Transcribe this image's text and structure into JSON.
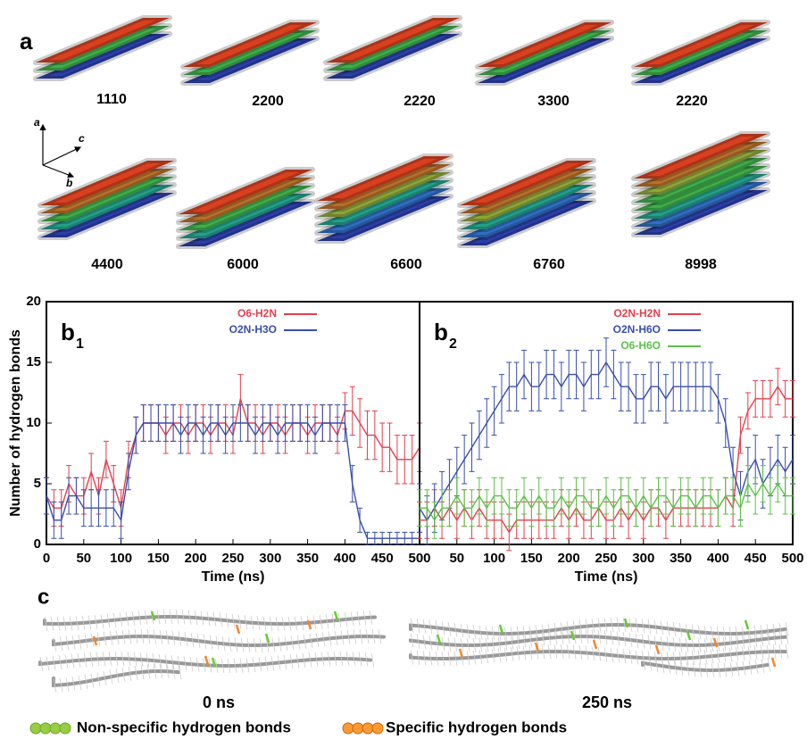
{
  "panel_a": {
    "label": "a",
    "structures": [
      "1110",
      "2200",
      "2220",
      "3300",
      "2220",
      "4400",
      "6000",
      "6600",
      "6760",
      "8998"
    ],
    "axes": [
      "a",
      "c",
      "b"
    ]
  },
  "chart_data": [
    {
      "type": "line",
      "panel_label": "b",
      "panel_sub": "1",
      "x_label": "Time (ns)",
      "y_label": "Number of hydrogen bonds",
      "legend": "upper center",
      "x": [
        0,
        10,
        20,
        30,
        40,
        50,
        60,
        70,
        80,
        90,
        100,
        110,
        120,
        130,
        140,
        150,
        160,
        170,
        180,
        190,
        200,
        210,
        220,
        230,
        240,
        250,
        260,
        270,
        280,
        290,
        300,
        310,
        320,
        330,
        340,
        350,
        360,
        370,
        380,
        390,
        400,
        410,
        420,
        430,
        440,
        450,
        460,
        470,
        480,
        490,
        500
      ],
      "xlim": [
        0,
        500
      ],
      "xticks": [
        0,
        50,
        100,
        150,
        200,
        250,
        300,
        350,
        400,
        450,
        500
      ],
      "ylim": [
        0,
        20
      ],
      "yticks": [
        0,
        5,
        10,
        15,
        20
      ],
      "series": [
        {
          "name": "O6-H2N",
          "color": "#e0404f",
          "values": [
            4,
            3,
            3,
            5,
            4,
            4,
            6,
            4,
            7,
            5,
            3,
            7,
            9,
            10,
            10,
            10,
            9,
            10,
            10,
            9,
            10,
            10,
            9,
            10,
            10,
            9,
            12,
            10,
            10,
            9,
            10,
            10,
            9,
            10,
            10,
            9,
            10,
            10,
            10,
            9,
            11,
            11,
            10,
            9,
            9,
            8,
            8,
            7,
            7,
            7,
            8
          ],
          "errors": [
            1.5,
            1.5,
            1.5,
            1.5,
            1.5,
            1.5,
            1.5,
            1.5,
            1.5,
            1.5,
            1.5,
            1.5,
            1.5,
            1.5,
            1.5,
            1.5,
            1.5,
            1.5,
            1.5,
            1.5,
            1.5,
            1.5,
            1.5,
            1.5,
            1.5,
            1.5,
            2,
            1.5,
            1.5,
            1.5,
            1.5,
            1.5,
            1.5,
            1.5,
            1.5,
            1.5,
            1.5,
            1.5,
            1.5,
            1.5,
            1.5,
            2,
            2,
            2,
            2,
            2,
            2,
            2,
            2,
            2,
            2
          ]
        },
        {
          "name": "O2N-H3O",
          "color": "#3a4fa8",
          "values": [
            4,
            2,
            2,
            4,
            4,
            3,
            3,
            3,
            3,
            3,
            2,
            6,
            9,
            10,
            10,
            10,
            10,
            10,
            9,
            10,
            10,
            9,
            10,
            10,
            9,
            10,
            10,
            10,
            9,
            10,
            10,
            9,
            10,
            10,
            10,
            10,
            9,
            10,
            10,
            10,
            10,
            5,
            2,
            0.5,
            0.5,
            0.5,
            0.5,
            0.5,
            0.5,
            0.5,
            0.5
          ],
          "errors": [
            1.5,
            1.5,
            1.5,
            1.5,
            1.5,
            1.5,
            1.5,
            1.5,
            1.5,
            1.5,
            1.5,
            1.5,
            1.5,
            1.5,
            1.5,
            1.5,
            1.5,
            1.5,
            1.5,
            1.5,
            1.5,
            1.5,
            1.5,
            1.5,
            1.5,
            1.5,
            1.5,
            1.5,
            1.5,
            1.5,
            1.5,
            1.5,
            1.5,
            1.5,
            1.5,
            1.5,
            1.5,
            1.5,
            1.5,
            1.5,
            1.5,
            1.5,
            1,
            0.5,
            0.5,
            0.5,
            0.5,
            0.5,
            0.5,
            0.5,
            0.5
          ]
        }
      ]
    },
    {
      "type": "line",
      "panel_label": "b",
      "panel_sub": "2",
      "x_label": "Time (ns)",
      "legend": "upper center",
      "x": [
        0,
        10,
        20,
        30,
        40,
        50,
        60,
        70,
        80,
        90,
        100,
        110,
        120,
        130,
        140,
        150,
        160,
        170,
        180,
        190,
        200,
        210,
        220,
        230,
        240,
        250,
        260,
        270,
        280,
        290,
        300,
        310,
        320,
        330,
        340,
        350,
        360,
        370,
        380,
        390,
        400,
        410,
        420,
        430,
        440,
        450,
        460,
        470,
        480,
        490,
        500
      ],
      "xlim": [
        0,
        500
      ],
      "xticks": [
        50,
        100,
        150,
        200,
        250,
        300,
        350,
        400,
        450,
        500
      ],
      "ylim": [
        0,
        20
      ],
      "series": [
        {
          "name": "O2N-H2N",
          "color": "#e0404f",
          "values": [
            2,
            2,
            3,
            2,
            3,
            2,
            3,
            2,
            3,
            2,
            2,
            2,
            1,
            2,
            2,
            2,
            2,
            2,
            2,
            3,
            2,
            3,
            2,
            2,
            3,
            2,
            2,
            3,
            2,
            3,
            2,
            3,
            3,
            2,
            3,
            3,
            3,
            3,
            3,
            3,
            3,
            4,
            3,
            9,
            11,
            12,
            12,
            12,
            13,
            12,
            12
          ],
          "errors": [
            1.5,
            1.5,
            1.5,
            1.5,
            1.5,
            1.5,
            1.5,
            1.5,
            1.5,
            1.5,
            1.5,
            1.5,
            1.5,
            1.5,
            1.5,
            1.5,
            1.5,
            1.5,
            1.5,
            1.5,
            1.5,
            1.5,
            1.5,
            1.5,
            1.5,
            1.5,
            1.5,
            1.5,
            1.5,
            1.5,
            1.5,
            1.5,
            1.5,
            1.5,
            1.5,
            1.5,
            1.5,
            1.5,
            1.5,
            1.5,
            1.5,
            1.5,
            1.5,
            1.5,
            1.5,
            1.5,
            1.5,
            1.5,
            1.5,
            1.5,
            1.5
          ]
        },
        {
          "name": "O2N-H6O",
          "color": "#3a4fa8",
          "values": [
            3,
            2,
            3,
            4,
            5,
            6,
            7,
            8,
            9,
            10,
            11,
            12,
            13,
            13,
            14,
            13,
            13,
            14,
            14,
            13,
            14,
            14,
            13,
            14,
            14,
            15,
            14,
            13,
            13,
            12,
            12,
            13,
            13,
            12,
            13,
            13,
            13,
            13,
            13,
            13,
            12,
            10,
            6,
            4,
            6,
            7,
            5,
            6,
            7,
            6,
            7
          ],
          "errors": [
            2,
            2,
            2,
            2,
            2,
            2,
            2,
            2,
            2,
            2,
            2,
            2,
            2,
            2,
            2,
            2,
            2,
            2,
            2,
            2,
            2,
            2,
            2,
            2,
            2,
            2,
            2,
            2,
            2,
            2,
            2,
            2,
            2,
            2,
            2,
            2,
            2,
            2,
            2,
            2,
            2,
            2,
            2,
            2,
            2,
            2,
            2,
            2,
            2,
            2,
            2
          ]
        },
        {
          "name": "O6-H6O",
          "color": "#5cc04a",
          "values": [
            3,
            3,
            2,
            3,
            3,
            4,
            3,
            3,
            4,
            3,
            4,
            4,
            3,
            3,
            4,
            3,
            4,
            3,
            3,
            4,
            3,
            4,
            4,
            3,
            3,
            4,
            3,
            4,
            4,
            3,
            4,
            3,
            4,
            4,
            3,
            4,
            4,
            3,
            4,
            4,
            3,
            4,
            4,
            3,
            5,
            4,
            5,
            4,
            5,
            4,
            4
          ],
          "errors": [
            1.5,
            1.5,
            1.5,
            1.5,
            1.5,
            1.5,
            1.5,
            1.5,
            1.5,
            1.5,
            1.5,
            1.5,
            1.5,
            1.5,
            1.5,
            1.5,
            1.5,
            1.5,
            1.5,
            1.5,
            1.5,
            1.5,
            1.5,
            1.5,
            1.5,
            1.5,
            1.5,
            1.5,
            1.5,
            1.5,
            1.5,
            1.5,
            1.5,
            1.5,
            1.5,
            1.5,
            1.5,
            1.5,
            1.5,
            1.5,
            1.5,
            1.5,
            1.5,
            1.5,
            1.5,
            1.5,
            1.5,
            1.5,
            1.5,
            1.5,
            1.5
          ]
        }
      ]
    }
  ],
  "panel_c": {
    "label": "c",
    "snapshots": [
      "0 ns",
      "250 ns"
    ],
    "legend": [
      "Non-specific hydrogen bonds",
      "Specific hydrogen bonds"
    ]
  }
}
